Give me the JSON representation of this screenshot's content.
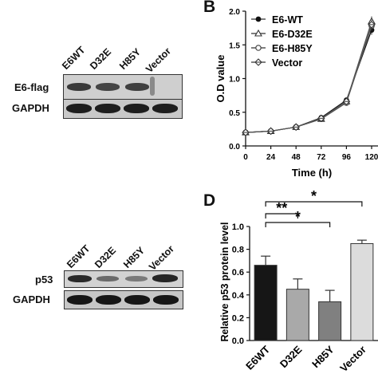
{
  "panels": {
    "A": {
      "letter": "",
      "lanes": [
        "E6WT",
        "D32E",
        "H85Y",
        "Vector"
      ],
      "rows": [
        "E6-flag",
        "GAPDH"
      ]
    },
    "B": {
      "letter": "B",
      "chart_data": {
        "type": "line",
        "x": [
          0,
          24,
          48,
          72,
          96,
          120
        ],
        "series": [
          {
            "name": "E6-WT",
            "values": [
              0.2,
              0.22,
              0.28,
              0.42,
              0.68,
              1.72
            ],
            "marker": "filled-circle"
          },
          {
            "name": "E6-D32E",
            "values": [
              0.2,
              0.22,
              0.28,
              0.4,
              0.66,
              1.85
            ],
            "marker": "open-triangle"
          },
          {
            "name": "E6-H85Y",
            "values": [
              0.2,
              0.22,
              0.28,
              0.4,
              0.64,
              1.78
            ],
            "marker": "open-circle"
          },
          {
            "name": "Vector",
            "values": [
              0.2,
              0.22,
              0.28,
              0.41,
              0.66,
              1.8
            ],
            "marker": "plus-diamond"
          }
        ],
        "xlabel": "Time (h)",
        "ylabel": "O.D value",
        "xticks": [
          "0",
          "24",
          "48",
          "72",
          "96",
          "120"
        ],
        "yticks": [
          "0.0",
          "0.5",
          "1.0",
          "1.5",
          "2.0"
        ],
        "xlim": [
          0,
          120
        ],
        "ylim": [
          0,
          2.0
        ],
        "legend": "top-left"
      }
    },
    "C": {
      "letter": "",
      "lanes": [
        "E6WT",
        "D32E",
        "H85Y",
        "Vector"
      ],
      "rows": [
        "p53",
        "GAPDH"
      ]
    },
    "D": {
      "letter": "D",
      "chart_data": {
        "type": "bar",
        "categories": [
          "E6WT",
          "D32E",
          "H85Y",
          "Vector"
        ],
        "values": [
          0.66,
          0.45,
          0.34,
          0.85
        ],
        "errors": [
          0.08,
          0.09,
          0.1,
          0.03
        ],
        "colors": [
          "#161616",
          "#a9a9a9",
          "#808080",
          "#dcdcdc"
        ],
        "ylabel": "Relative p53 protein level",
        "yticks": [
          "0.0",
          "0.2",
          "0.4",
          "0.6",
          "0.8",
          "1.0"
        ],
        "ylim": [
          0,
          1.0
        ],
        "significance": [
          {
            "from": 0,
            "to": 2,
            "label": "*"
          },
          {
            "from": 0,
            "to": 1,
            "label": "**"
          },
          {
            "from": 0,
            "to": 3,
            "label": "*"
          }
        ]
      }
    }
  }
}
